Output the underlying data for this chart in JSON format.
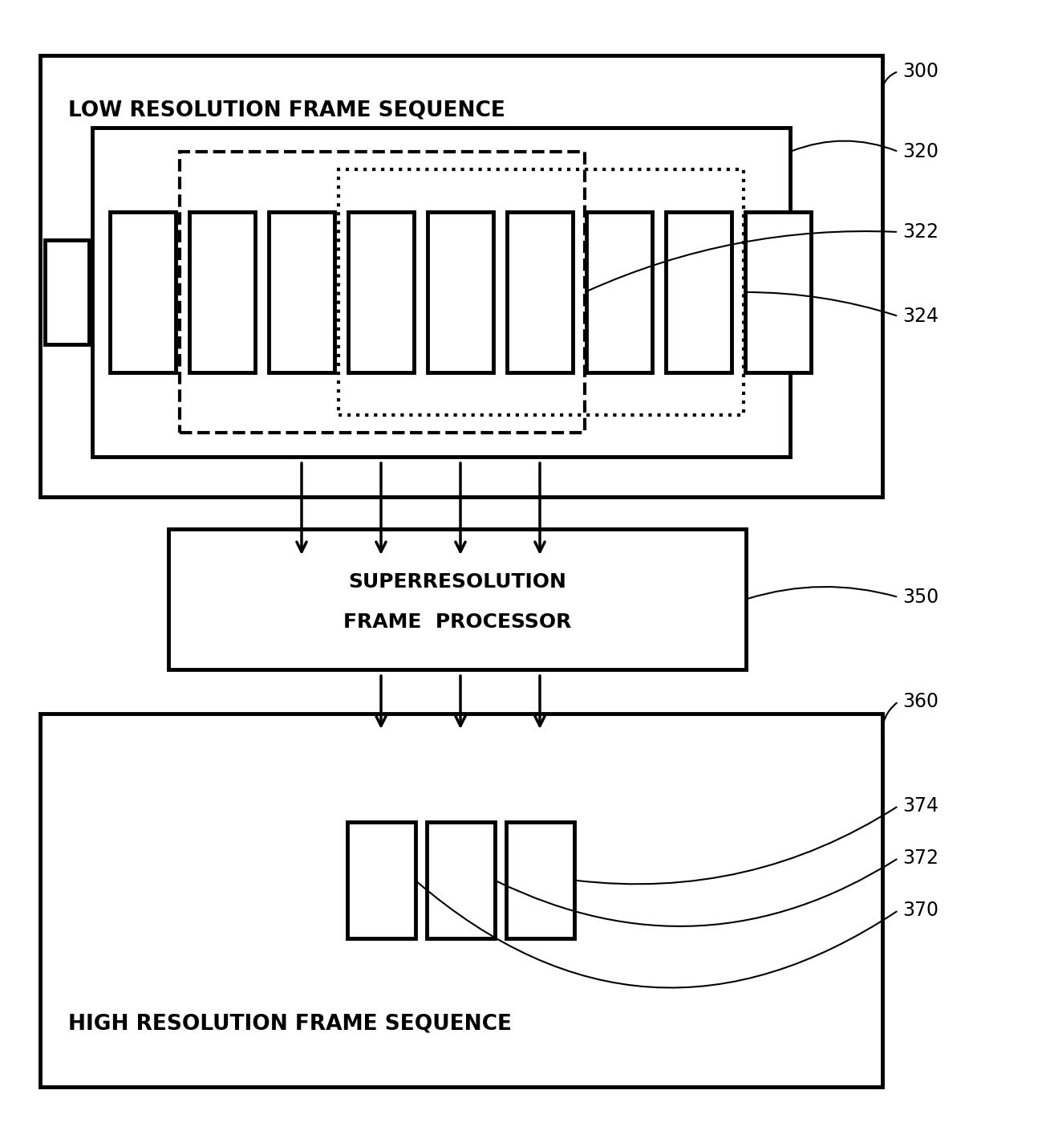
{
  "bg_color": "#ffffff",
  "line_color": "#000000",
  "label_300": "300",
  "label_320": "320",
  "label_322": "322",
  "label_324": "324",
  "label_350": "350",
  "label_360": "360",
  "label_370": "370",
  "label_372": "372",
  "label_374": "374",
  "text_low_res": "LOW RESOLUTION FRAME SEQUENCE",
  "text_superres_line1": "SUPERRESOLUTION",
  "text_superres_line2": "FRAME  PROCESSOR",
  "text_high_res": "HIGH RESOLUTION FRAME SEQUENCE"
}
